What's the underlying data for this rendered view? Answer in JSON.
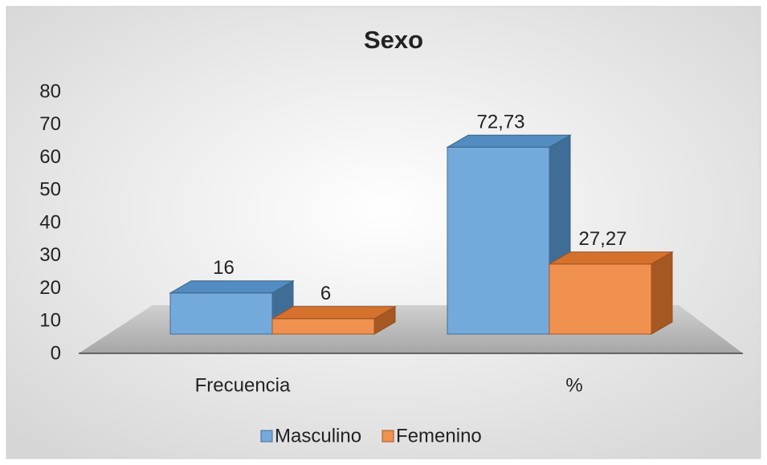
{
  "chart_data": {
    "type": "bar",
    "title": "Sexo",
    "categories": [
      "Frecuencia",
      "%"
    ],
    "series": [
      {
        "name": "Masculino",
        "color": "#5b9bd5",
        "values": [
          16,
          72.73
        ],
        "value_labels": [
          "16",
          "72,73"
        ]
      },
      {
        "name": "Femenino",
        "color": "#ed7d31",
        "values": [
          6,
          27.27
        ],
        "value_labels": [
          "6",
          "27,27"
        ]
      }
    ],
    "ylim": [
      0,
      80
    ],
    "yticks": [
      0,
      10,
      20,
      30,
      40,
      50,
      60,
      70,
      80
    ],
    "grid": false,
    "legend": "bottom"
  }
}
